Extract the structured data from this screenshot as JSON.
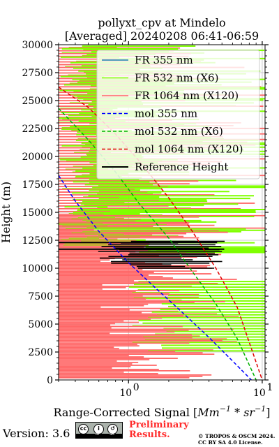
{
  "chart_data": {
    "type": "line",
    "title": "pollyxt_cpv at Mindelo",
    "subtitle": "[Averaged] 20240208 06:41-06:59",
    "xlabel": "Range-Corrected Signal [",
    "xlabel_unit": "Mm",
    "xlabel_exp": "−1",
    "xlabel_mid": " * sr",
    "xlabel_exp2": "−1",
    "xlabel_end": "]",
    "ylabel": "Height (m)",
    "xscale": "log",
    "xlim": [
      0.3,
      10.5
    ],
    "ylim": [
      0,
      30000
    ],
    "x_ticks": [
      {
        "value": 1,
        "label": "10",
        "exp": "0"
      },
      {
        "value": 10,
        "label": "10",
        "exp": "1"
      }
    ],
    "y_ticks": [
      0,
      2500,
      5000,
      7500,
      10000,
      12500,
      15000,
      17500,
      20000,
      22500,
      25000,
      27500,
      30000
    ],
    "y_tick_labels": [
      "0",
      "2500",
      "5000",
      "7500",
      "10000",
      "12500",
      "15000",
      "17500",
      "20000",
      "22500",
      "25000",
      "27500",
      "30000"
    ],
    "grid": true,
    "legend_position": "top-right",
    "legend": [
      {
        "label": "FR 355 nm",
        "color": "#1f77b4",
        "style": "solid"
      },
      {
        "label": "FR 532 nm (X6)",
        "color": "#80ff00",
        "style": "solid"
      },
      {
        "label": "FR 1064 nm (X120)",
        "color": "#ff6666",
        "style": "solid"
      },
      {
        "label": "mol 355 nm",
        "color": "#0000ff",
        "style": "dashed"
      },
      {
        "label": "mol 532 nm (X6)",
        "color": "#00b000",
        "style": "dashed"
      },
      {
        "label": "mol 1064 nm (X120)",
        "color": "#e00000",
        "style": "dashed"
      },
      {
        "label": "Reference Height",
        "color": "#000000",
        "style": "solid"
      }
    ],
    "series": [
      {
        "name": "mol 355 nm",
        "color": "#0000ff",
        "dash": true,
        "points": [
          [
            0.3,
            18300
          ],
          [
            0.4,
            16000
          ],
          [
            0.6,
            13300
          ],
          [
            1.0,
            10500
          ],
          [
            1.6,
            8200
          ],
          [
            2.5,
            6100
          ],
          [
            4.0,
            3800
          ],
          [
            6.0,
            1700
          ],
          [
            8.3,
            0
          ]
        ]
      },
      {
        "name": "mol 532 nm (X6)",
        "color": "#00b000",
        "dash": true,
        "points": [
          [
            0.3,
            24300
          ],
          [
            0.5,
            21500
          ],
          [
            0.8,
            18600
          ],
          [
            1.2,
            15800
          ],
          [
            2.0,
            12700
          ],
          [
            3.0,
            9700
          ],
          [
            4.5,
            6800
          ],
          [
            6.5,
            3700
          ],
          [
            9.0,
            0
          ]
        ]
      },
      {
        "name": "mol 1064 nm (X120)",
        "color": "#e00000",
        "dash": true,
        "points": [
          [
            0.3,
            26200
          ],
          [
            0.5,
            24400
          ],
          [
            0.8,
            22000
          ],
          [
            1.2,
            19600
          ],
          [
            2.0,
            16300
          ],
          [
            3.0,
            13300
          ],
          [
            4.5,
            10000
          ],
          [
            6.5,
            6500
          ],
          [
            10.0,
            0
          ]
        ]
      }
    ],
    "reference_height": [
      10000,
      12500
    ]
  },
  "footer": {
    "version": "Version: 3.6",
    "cc_icons": [
      "cc",
      "by",
      "sa"
    ],
    "cc_by": "BY",
    "cc_sa": "SA",
    "preliminary_line1": "Preliminary",
    "preliminary_line2": "Results.",
    "copyright_line1": "© TROPOS & OSCM 2024.",
    "copyright_line2": "CC BY SA 4.0 License."
  }
}
